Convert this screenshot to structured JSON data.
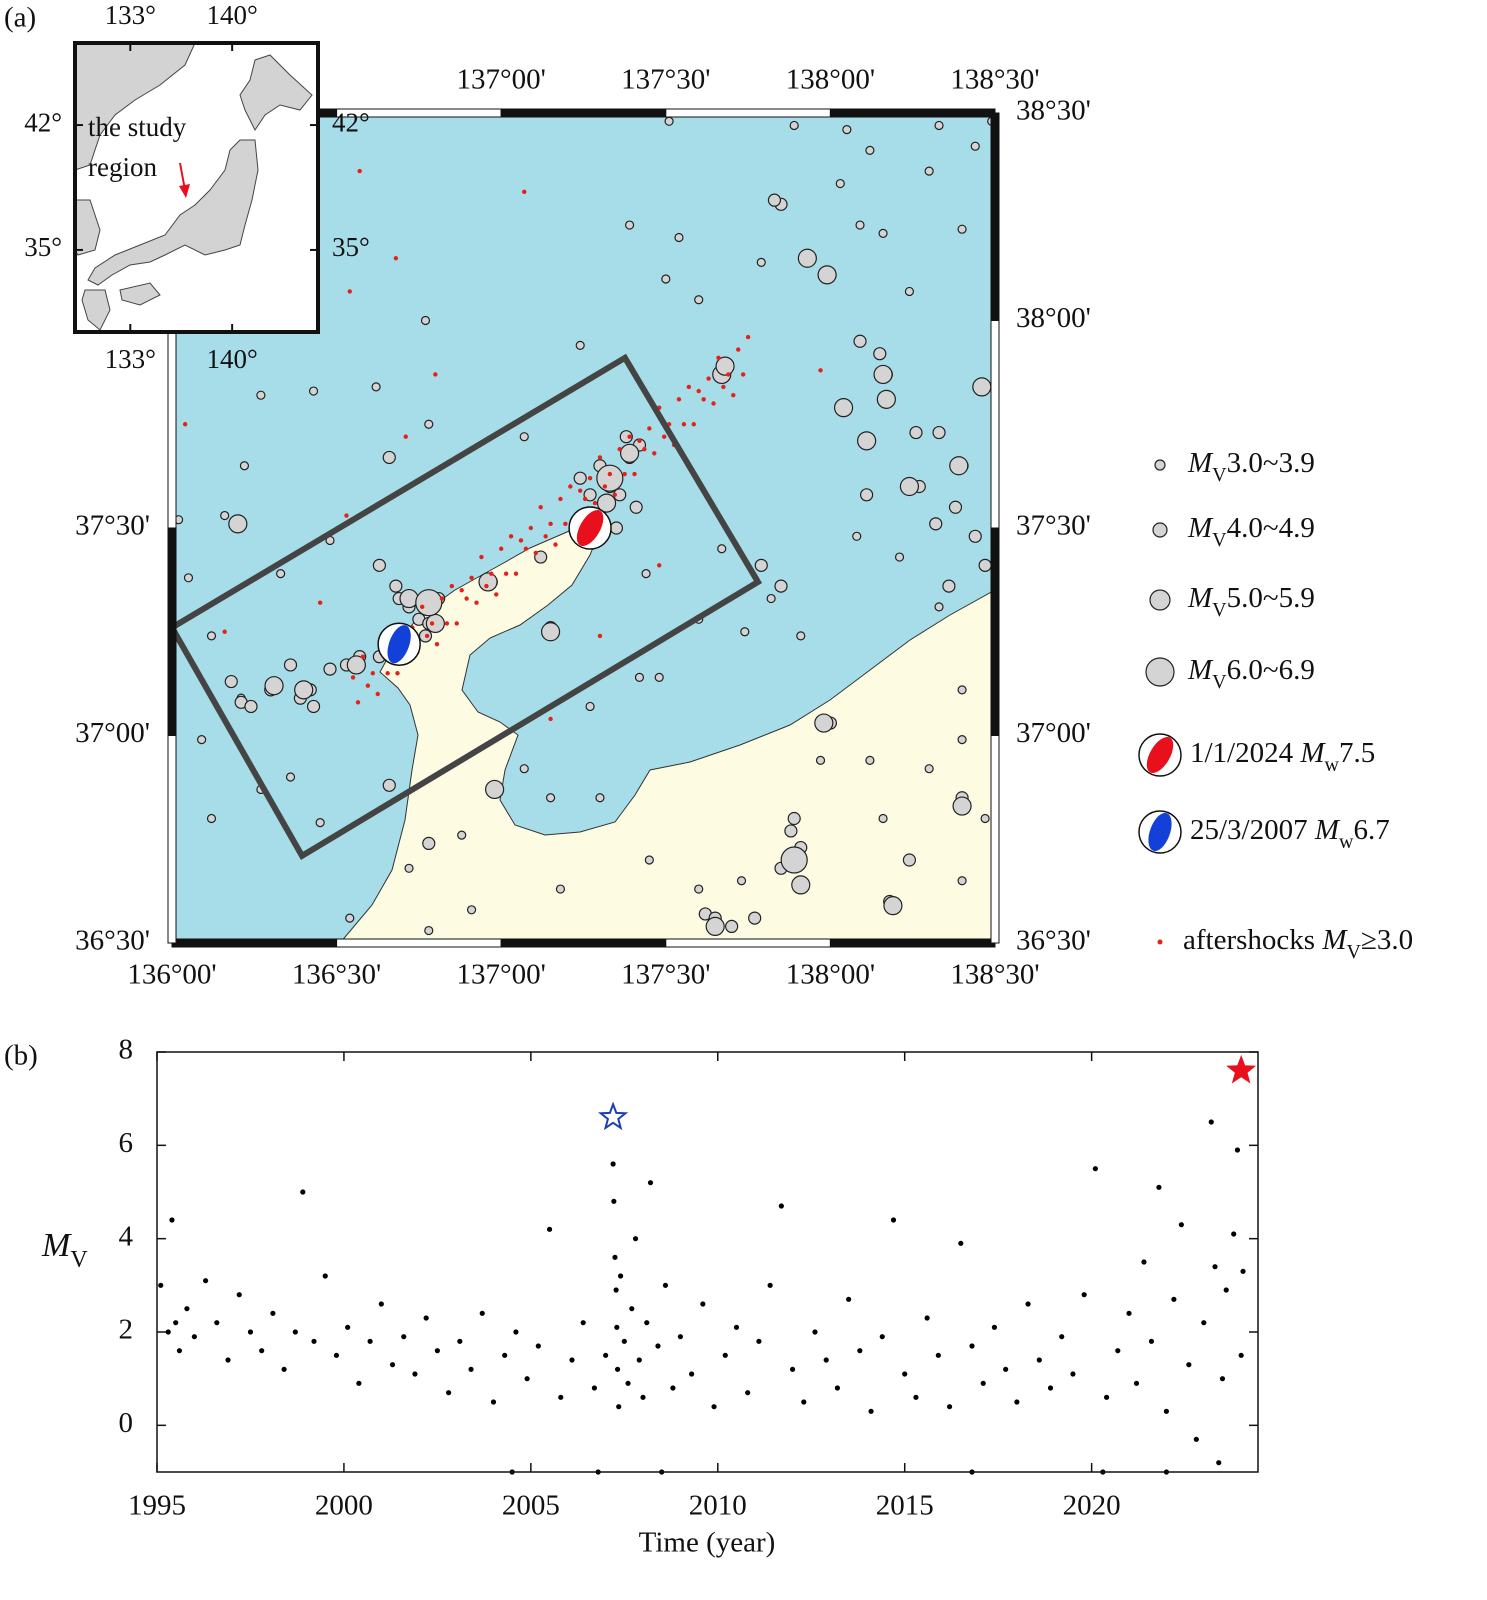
{
  "chart_data": [
    {
      "type": "map",
      "panel_label": "(a)",
      "xlim": [
        136,
        138.5
      ],
      "ylim": [
        36.5,
        38.5
      ],
      "xticks_top": [
        {
          "value": 137,
          "label": "137°00'"
        },
        {
          "value": 137.5,
          "label": "137°30'"
        },
        {
          "value": 138,
          "label": "138°00'"
        },
        {
          "value": 138.5,
          "label": "138°30'"
        }
      ],
      "xticks_bottom": [
        {
          "value": 136,
          "label": "136°00'"
        },
        {
          "value": 136.5,
          "label": "136°30'"
        },
        {
          "value": 137,
          "label": "137°00'"
        },
        {
          "value": 137.5,
          "label": "137°30'"
        },
        {
          "value": 138,
          "label": "138°00'"
        },
        {
          "value": 138.5,
          "label": "138°30'"
        }
      ],
      "yticks_left": [
        {
          "value": 37.5,
          "label": "37°30'"
        },
        {
          "value": 37,
          "label": "37°00'"
        },
        {
          "value": 36.5,
          "label": "36°30'"
        }
      ],
      "yticks_right": [
        {
          "value": 38.5,
          "label": "38°30'"
        },
        {
          "value": 38,
          "label": "38°00'"
        },
        {
          "value": 37.5,
          "label": "37°30'"
        },
        {
          "value": 37,
          "label": "37°00'"
        },
        {
          "value": 36.5,
          "label": "36°30'"
        }
      ],
      "series": [
        {
          "name": {
            "italic": "M",
            "sub": "V",
            "text": "3.0~3.9"
          },
          "color": "#d4d4d4",
          "x": [
            137.51,
            137.89,
            138.05,
            138.33,
            138.49,
            137.39,
            137.54,
            138.09,
            138.4,
            138.16,
            137.5,
            137.6,
            137.79,
            138.24,
            138.03,
            138.3,
            138.44,
            138.12,
            136.16,
            136.02,
            136.05,
            136.12,
            136.21,
            136.09,
            136.12,
            136.27,
            136.45,
            136.36,
            136.77,
            136.62,
            136.27,
            136.43,
            136.22,
            136.33,
            136.48,
            137.27,
            137.42,
            137.6,
            137.74,
            137.91,
            137.67,
            137.82,
            138.08,
            138.21,
            138.33,
            138.4,
            138.3,
            138.12,
            138.16,
            137.97,
            137.45,
            137.6,
            137.18,
            136.78,
            136.91,
            136.72,
            136.88,
            137.44,
            137.48,
            137.3,
            137.73,
            137.15,
            137.07,
            136.54,
            138.18,
            138.4,
            138.47,
            138.4,
            137.24,
            137.07,
            136.78
          ],
          "y": [
            38.48,
            38.47,
            38.46,
            38.47,
            38.48,
            38.23,
            38.2,
            38.23,
            38.22,
            38.21,
            38.1,
            38.05,
            38.14,
            38.07,
            38.33,
            38.36,
            38.42,
            38.41,
            37.53,
            37.52,
            37.38,
            37.24,
            37.09,
            36.99,
            36.8,
            36.87,
            36.79,
            36.9,
            38.0,
            37.84,
            37.82,
            37.83,
            37.65,
            37.39,
            37.47,
            37.07,
            37.14,
            37.28,
            37.25,
            37.24,
            37.45,
            37.33,
            37.48,
            37.43,
            37.31,
            37.11,
            36.92,
            36.94,
            36.8,
            36.94,
            36.7,
            36.63,
            36.63,
            36.53,
            36.58,
            36.68,
            36.76,
            37.39,
            37.14,
            36.85,
            36.65,
            36.85,
            36.92,
            36.56,
            36.59,
            36.65,
            36.8,
            36.99,
            37.94,
            37.72,
            37.75
          ]
        },
        {
          "name": {
            "italic": "M",
            "sub": "V",
            "text": "4.0~4.9"
          },
          "color": "#d4d4d4",
          "x": [
            136.48,
            136.53,
            136.57,
            136.42,
            136.39,
            136.43,
            136.21,
            136.24,
            136.3,
            136.36,
            136.69,
            136.72,
            136.75,
            136.78,
            136.81,
            136.77,
            136.68,
            136.63,
            137.3,
            137.33,
            137.36,
            137.39,
            137.38,
            137.41,
            137.27,
            137.24,
            137.3,
            137.35,
            137.42,
            137.85,
            137.83,
            138.09,
            138.15,
            138.17,
            138.26,
            138.33,
            138.32,
            138.38,
            138.44,
            138.47,
            138.4,
            138.27,
            138.36,
            138.11,
            137.85,
            137.79,
            137.88,
            137.91,
            137.85,
            137.89,
            137.62,
            137.65,
            137.7,
            137.77,
            138.0,
            138.18,
            138.4,
            138.24,
            137.15,
            137.12,
            136.97,
            136.63,
            136.78,
            136.66,
            136.66,
            136.18
          ],
          "y": [
            37.16,
            37.17,
            37.19,
            37.11,
            37.09,
            37.07,
            37.08,
            37.07,
            37.11,
            37.17,
            37.33,
            37.31,
            37.28,
            37.27,
            37.33,
            37.24,
            37.36,
            37.19,
            37.65,
            37.6,
            37.58,
            37.67,
            37.72,
            37.55,
            37.58,
            37.62,
            37.53,
            37.5,
            37.7,
            38.28,
            38.29,
            37.95,
            37.92,
            37.87,
            37.73,
            37.73,
            37.51,
            37.55,
            37.48,
            37.41,
            37.65,
            37.6,
            37.36,
            37.58,
            37.36,
            37.41,
            36.77,
            36.73,
            36.68,
            36.8,
            36.57,
            36.56,
            36.54,
            36.56,
            37.03,
            36.6,
            36.85,
            36.7,
            37.26,
            37.43,
            37.37,
            37.41,
            36.74,
            36.88,
            37.67,
            37.13
          ]
        },
        {
          "name": {
            "italic": "M",
            "sub": "V",
            "text": "5.0~5.9"
          },
          "color": "#d4d4d4",
          "x": [
            136.2,
            137.93,
            137.99,
            138.16,
            138.17,
            138.04,
            138.11,
            138.46,
            138.24,
            138.39,
            136.98,
            137.91,
            138.19,
            137.67,
            137.68,
            137.39,
            137.32,
            137.15,
            136.96,
            136.8,
            136.72,
            136.56,
            136.4,
            136.31,
            137.98,
            138.4,
            137.65
          ],
          "y": [
            37.51,
            38.15,
            38.11,
            37.87,
            37.81,
            37.79,
            37.71,
            37.84,
            37.6,
            37.65,
            36.87,
            36.64,
            36.59,
            37.87,
            37.89,
            37.68,
            37.56,
            37.25,
            37.37,
            37.27,
            37.33,
            37.17,
            37.11,
            37.12,
            37.03,
            36.83,
            36.54
          ]
        },
        {
          "name": {
            "italic": "M",
            "sub": "V",
            "text": "6.0~6.9"
          },
          "color": "#d4d4d4",
          "x": [
            137.89,
            136.78,
            137.33
          ],
          "y": [
            36.7,
            37.32,
            37.62
          ]
        },
        {
          "name": {
            "before": "aftershocks ",
            "italic": "M",
            "sub": "V",
            "text": "≥3.0"
          },
          "color": "#e8201a",
          "x": [
            136.55,
            136.565,
            136.58,
            136.595,
            136.61,
            136.625,
            136.64,
            136.655,
            136.67,
            136.685,
            136.7,
            136.715,
            136.73,
            136.745,
            136.76,
            136.775,
            136.79,
            136.805,
            136.82,
            136.835,
            136.85,
            136.865,
            136.88,
            136.895,
            136.91,
            136.925,
            136.94,
            136.955,
            136.97,
            136.985,
            137.0,
            137.015,
            137.03,
            137.045,
            137.06,
            137.075,
            137.09,
            137.105,
            137.12,
            137.135,
            137.15,
            137.165,
            137.18,
            137.195,
            137.21,
            137.225,
            137.24,
            137.255,
            137.27,
            137.285,
            137.3,
            137.315,
            137.33,
            137.345,
            137.36,
            137.375,
            137.39,
            137.405,
            137.42,
            137.435,
            137.45,
            137.465,
            137.48,
            137.495,
            137.51,
            137.525,
            137.54,
            137.555,
            137.57,
            137.585,
            137.6,
            137.615,
            137.63,
            137.645,
            137.66,
            137.675,
            137.69,
            137.705,
            137.72,
            137.735,
            137.75,
            136.57,
            137.07,
            136.54,
            136.68,
            136.8,
            136.04,
            136.16,
            136.45,
            136.53,
            136.71,
            137.3,
            137.15,
            137.48,
            137.97
          ],
          "y": [
            37.14,
            37.08,
            37.19,
            37.12,
            37.15,
            37.1,
            37.21,
            37.15,
            37.24,
            37.15,
            37.23,
            37.21,
            37.26,
            37.2,
            37.31,
            37.24,
            37.27,
            37.22,
            37.33,
            37.27,
            37.36,
            37.27,
            37.35,
            37.33,
            37.38,
            37.32,
            37.43,
            37.36,
            37.39,
            37.34,
            37.45,
            37.39,
            37.48,
            37.39,
            37.47,
            37.45,
            37.5,
            37.44,
            37.55,
            37.48,
            37.51,
            37.46,
            37.57,
            37.51,
            37.6,
            37.51,
            37.59,
            37.57,
            37.62,
            37.56,
            37.67,
            37.6,
            37.63,
            37.58,
            37.69,
            37.63,
            37.72,
            37.63,
            37.71,
            37.69,
            37.74,
            37.68,
            37.79,
            37.72,
            37.75,
            37.7,
            37.81,
            37.75,
            37.84,
            37.75,
            37.83,
            37.81,
            37.86,
            37.8,
            37.91,
            37.84,
            37.87,
            37.82,
            37.93,
            37.87,
            37.96,
            38.36,
            38.31,
            38.07,
            38.15,
            37.87,
            37.75,
            37.25,
            37.32,
            37.53,
            37.72,
            37.24,
            37.04,
            37.41,
            37.88
          ]
        }
      ],
      "events": [
        {
          "name": {
            "before": "1/1/2024 ",
            "italic": "M",
            "sub": "w",
            "text": "7.5"
          },
          "x": 137.27,
          "y": 37.5,
          "color": "#e8101c"
        },
        {
          "name": {
            "before": "25/3/2007 ",
            "italic": "M",
            "sub": "w",
            "text": "6.7"
          },
          "x": 136.69,
          "y": 37.22,
          "color": "#1240d8"
        }
      ],
      "region_box": {
        "x": [
          136.0,
          137.376,
          137.78,
          136.395
        ],
        "y": [
          37.26,
          37.91,
          37.37,
          36.71
        ]
      },
      "inset": {
        "xlim": [
          129.2,
          145.9
        ],
        "ylim": [
          30.4,
          46.6
        ],
        "xticks": [
          {
            "value": 133,
            "label": "133°"
          },
          {
            "value": 140,
            "label": "140°"
          }
        ],
        "yticks": [
          {
            "value": 42,
            "label": "42°"
          },
          {
            "value": 35,
            "label": "35°"
          }
        ],
        "annotation": [
          "the study",
          "region"
        ]
      }
    },
    {
      "type": "scatter",
      "panel_label": "(b)",
      "xlabel": "Time (year)",
      "ylabel": {
        "italic": "M",
        "sub": "V"
      },
      "xlim": [
        1995,
        2024.45
      ],
      "ylim": [
        -1,
        8
      ],
      "xticks": [
        1995,
        2000,
        2005,
        2010,
        2015,
        2020
      ],
      "yticks": [
        0,
        2,
        4,
        6,
        8
      ],
      "series": [
        {
          "color": "#000000",
          "x": [
            1995.1,
            1995.3,
            1995.4,
            1995.5,
            1995.6,
            1995.8,
            1996.0,
            1996.3,
            1996.6,
            1996.9,
            1997.2,
            1997.5,
            1997.8,
            1998.1,
            1998.4,
            1998.7,
            1998.9,
            1999.2,
            1999.5,
            1999.8,
            2000.1,
            2000.4,
            2000.7,
            2001.0,
            2001.3,
            2001.6,
            2001.9,
            2002.2,
            2002.5,
            2002.8,
            2003.1,
            2003.4,
            2003.7,
            2004.0,
            2004.3,
            2004.6,
            2004.9,
            2005.2,
            2005.5,
            2005.8,
            2006.1,
            2006.4,
            2006.7,
            2007.0,
            2007.2,
            2007.22,
            2007.25,
            2007.28,
            2007.3,
            2007.32,
            2007.35,
            2007.4,
            2007.5,
            2007.6,
            2007.7,
            2007.8,
            2007.9,
            2008.0,
            2008.1,
            2008.2,
            2008.4,
            2008.6,
            2008.8,
            2009.0,
            2009.3,
            2009.6,
            2009.9,
            2010.2,
            2010.5,
            2010.8,
            2011.1,
            2011.4,
            2011.7,
            2012.0,
            2012.3,
            2012.6,
            2012.9,
            2013.2,
            2013.5,
            2013.8,
            2014.1,
            2014.4,
            2014.7,
            2015.0,
            2015.3,
            2015.6,
            2015.9,
            2016.2,
            2016.5,
            2016.8,
            2017.1,
            2017.4,
            2017.7,
            2018.0,
            2018.3,
            2018.6,
            2018.9,
            2019.2,
            2019.5,
            2019.8,
            2020.1,
            2020.4,
            2020.7,
            2021.0,
            2021.2,
            2021.4,
            2021.6,
            2021.8,
            2022.0,
            2022.2,
            2022.4,
            2022.6,
            2022.8,
            2023.0,
            2023.2,
            2023.3,
            2023.4,
            2023.5,
            2023.6,
            2023.8,
            2023.9,
            2024.0,
            2024.05,
            2004.5,
            2006.8,
            2008.5,
            2016.8,
            2020.3,
            2022.0
          ],
          "values": [
            3.0,
            2.0,
            4.4,
            2.2,
            1.6,
            2.5,
            1.9,
            3.1,
            2.2,
            1.4,
            2.8,
            2.0,
            1.6,
            2.4,
            1.2,
            2.0,
            5.0,
            1.8,
            3.2,
            1.5,
            2.1,
            0.9,
            1.8,
            2.6,
            1.3,
            1.9,
            1.1,
            2.3,
            1.6,
            0.7,
            1.8,
            1.2,
            2.4,
            0.5,
            1.5,
            2.0,
            1.0,
            1.7,
            4.2,
            0.6,
            1.4,
            2.2,
            0.8,
            1.5,
            5.6,
            4.8,
            3.6,
            2.9,
            2.1,
            1.2,
            0.4,
            3.2,
            1.8,
            0.9,
            2.5,
            4.0,
            1.4,
            0.6,
            2.2,
            5.2,
            1.7,
            3.0,
            0.8,
            1.9,
            1.1,
            2.6,
            0.4,
            1.5,
            2.1,
            0.7,
            1.8,
            3.0,
            4.7,
            1.2,
            0.5,
            2.0,
            1.4,
            0.8,
            2.7,
            1.6,
            0.3,
            1.9,
            4.4,
            1.1,
            0.6,
            2.3,
            1.5,
            0.4,
            3.9,
            1.7,
            0.9,
            2.1,
            1.2,
            0.5,
            2.6,
            1.4,
            0.8,
            1.9,
            1.1,
            2.8,
            5.5,
            0.6,
            1.6,
            2.4,
            0.9,
            3.5,
            1.8,
            5.1,
            0.3,
            2.7,
            4.3,
            1.3,
            -0.3,
            2.2,
            6.5,
            3.4,
            -0.8,
            1.0,
            2.9,
            4.1,
            5.9,
            1.5,
            3.3,
            -1,
            -1,
            -1,
            -1,
            -1,
            -1
          ]
        }
      ],
      "markers": [
        {
          "x": 2007.2,
          "value": 6.6,
          "color": "#1a3fb5",
          "filled": false
        },
        {
          "x": 2024.0,
          "value": 7.6,
          "color": "#e8101c",
          "filled": true
        }
      ]
    }
  ]
}
